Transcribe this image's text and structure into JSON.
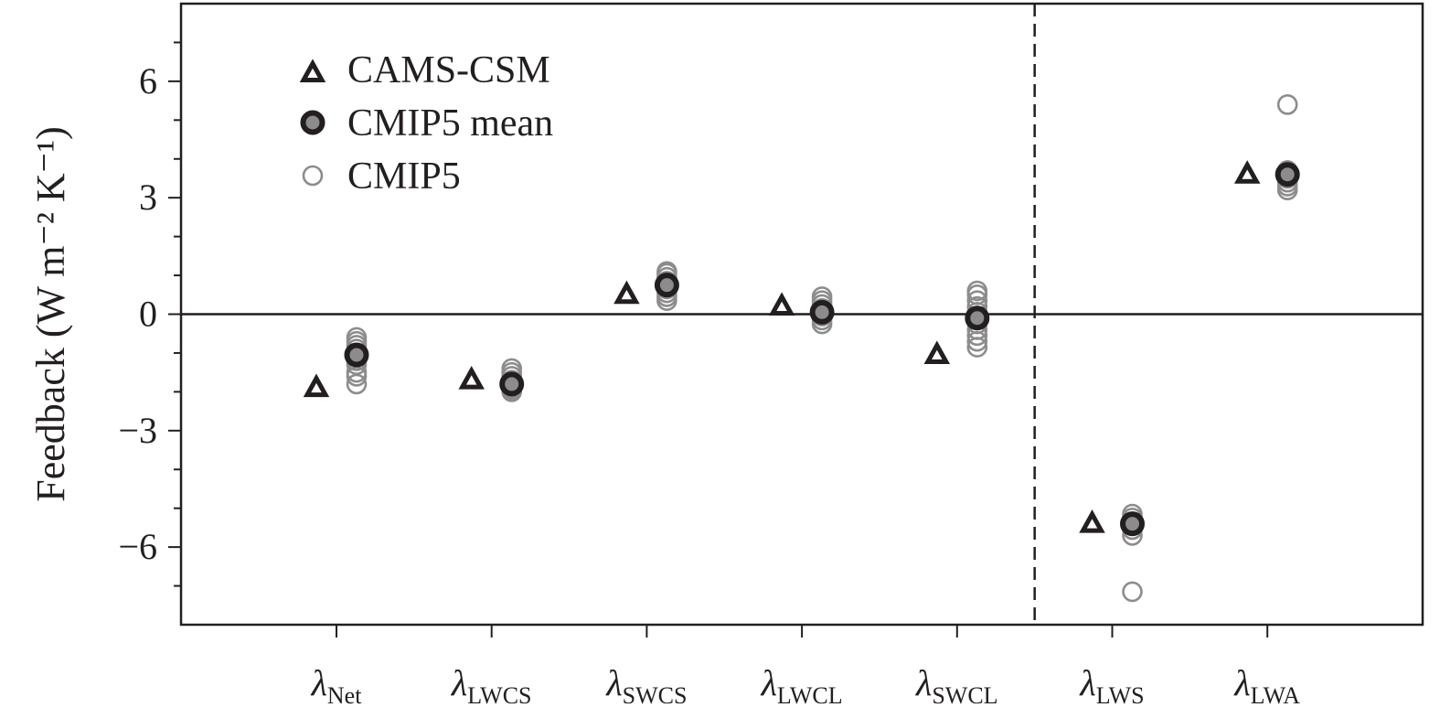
{
  "chart_data": {
    "type": "scatter",
    "ylabel": "Feedback (W m⁻² K⁻¹)",
    "ylim": [
      -8,
      8
    ],
    "yticks": [
      {
        "value": 6,
        "label": "6"
      },
      {
        "value": 3,
        "label": "3"
      },
      {
        "value": 0,
        "label": "0"
      },
      {
        "value": -3,
        "label": "−3"
      },
      {
        "value": -6,
        "label": "−6"
      }
    ],
    "categories": [
      {
        "symbol": "λ",
        "sub": "Net"
      },
      {
        "symbol": "λ",
        "sub": "LWCS"
      },
      {
        "symbol": "λ",
        "sub": "SWCS"
      },
      {
        "symbol": "λ",
        "sub": "LWCL"
      },
      {
        "symbol": "λ",
        "sub": "SWCL"
      },
      {
        "symbol": "λ",
        "sub": "LWS"
      },
      {
        "symbol": "λ",
        "sub": "LWA"
      }
    ],
    "divider_after_category": 4,
    "zero_line": true,
    "legend_position": "top-left",
    "series": [
      {
        "name": "CAMS-CSM",
        "marker": "triangle",
        "color": "#231f20",
        "values": [
          -1.9,
          -1.7,
          0.5,
          0.2,
          -1.05,
          -5.4,
          3.6
        ]
      },
      {
        "name": "CMIP5 mean",
        "marker": "circle-thick",
        "color": "#231f20",
        "values": [
          -1.05,
          -1.8,
          0.75,
          0.05,
          -0.1,
          -5.4,
          3.6
        ]
      },
      {
        "name": "CMIP5",
        "marker": "circle-open",
        "color": "#8c8c8c",
        "values": [
          [
            -0.6,
            -0.7,
            -0.8,
            -0.9,
            -1.0,
            -1.1,
            -1.2,
            -1.3,
            -1.5,
            -1.6,
            -1.8
          ],
          [
            -1.4,
            -1.5,
            -1.6,
            -1.7,
            -1.75,
            -1.8,
            -1.85,
            -1.9,
            -1.95,
            -2.0
          ],
          [
            0.35,
            0.45,
            0.55,
            0.65,
            0.75,
            0.85,
            0.95,
            1.05,
            1.1
          ],
          [
            -0.25,
            -0.15,
            -0.05,
            0.05,
            0.15,
            0.25,
            0.35,
            0.45
          ],
          [
            -0.85,
            -0.7,
            -0.55,
            -0.4,
            -0.25,
            -0.1,
            0.05,
            0.2,
            0.35,
            0.5,
            0.6
          ],
          [
            -7.15,
            -5.7,
            -5.55,
            -5.45,
            -5.35,
            -5.25,
            -5.15
          ],
          [
            5.4,
            3.2,
            3.3,
            3.4,
            3.5,
            3.6,
            3.7
          ]
        ]
      }
    ]
  }
}
